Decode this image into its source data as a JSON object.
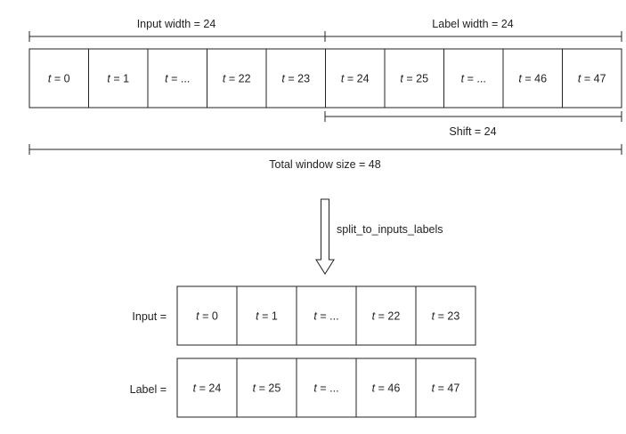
{
  "top": {
    "input_width_label": "Input width = 24",
    "label_width_label": "Label width = 24",
    "shift_label": "Shift = 24",
    "total_window_label": "Total window size = 48",
    "cells": [
      {
        "var": "t",
        "val": "= 0"
      },
      {
        "var": "t",
        "val": "= 1"
      },
      {
        "var": "t",
        "val": "= ..."
      },
      {
        "var": "t",
        "val": "= 22"
      },
      {
        "var": "t",
        "val": "= 23"
      },
      {
        "var": "t",
        "val": "= 24"
      },
      {
        "var": "t",
        "val": "= 25"
      },
      {
        "var": "t",
        "val": "= ..."
      },
      {
        "var": "t",
        "val": "= 46"
      },
      {
        "var": "t",
        "val": "= 47"
      }
    ]
  },
  "arrow_label": "split_to_inputs_labels",
  "inputs": {
    "label": "Input =",
    "cells": [
      {
        "var": "t",
        "val": "= 0"
      },
      {
        "var": "t",
        "val": "= 1"
      },
      {
        "var": "t",
        "val": "= ..."
      },
      {
        "var": "t",
        "val": "= 22"
      },
      {
        "var": "t",
        "val": "= 23"
      }
    ]
  },
  "labels": {
    "label": "Label =",
    "cells": [
      {
        "var": "t",
        "val": "= 24"
      },
      {
        "var": "t",
        "val": "= 25"
      },
      {
        "var": "t",
        "val": "= ..."
      },
      {
        "var": "t",
        "val": "= 46"
      },
      {
        "var": "t",
        "val": "= 47"
      }
    ]
  }
}
